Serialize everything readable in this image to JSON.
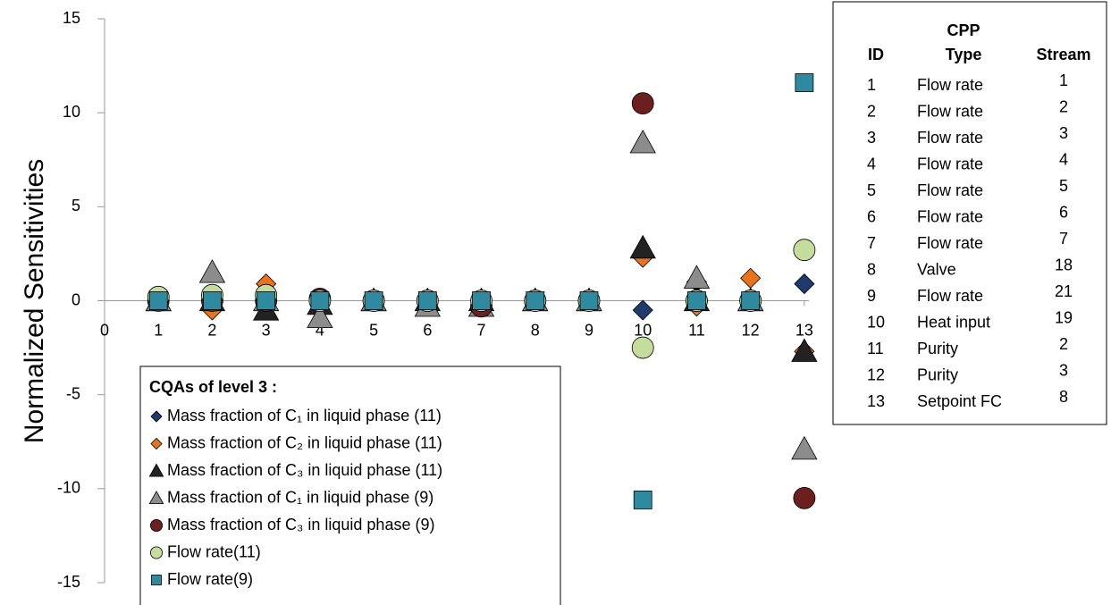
{
  "chart_data": {
    "type": "scatter",
    "ylabel": "Normalized Sensitivities",
    "x": [
      1,
      2,
      3,
      4,
      5,
      6,
      7,
      8,
      9,
      10,
      11,
      12,
      13
    ],
    "xlim": [
      0,
      13.5
    ],
    "xticks": [
      0,
      1,
      2,
      3,
      4,
      5,
      6,
      7,
      8,
      9,
      10,
      11,
      12,
      13
    ],
    "ylim": [
      -15,
      15
    ],
    "yticks": [
      -15,
      -10,
      -5,
      0,
      5,
      10,
      15
    ],
    "legend_title": "CQAs of level 3 :",
    "legend_position": "lower left",
    "series": [
      {
        "name": "Mass fraction of C₁ in liquid phase (11)",
        "color": "#1f3b6b",
        "marker": "diamond",
        "values": [
          0,
          0,
          0,
          0,
          0,
          0,
          0,
          0,
          0,
          -0.5,
          1.0,
          0,
          0.9
        ]
      },
      {
        "name": "Mass fraction of C₂ in liquid phase (11)",
        "color": "#e8731a",
        "marker": "diamond",
        "values": [
          0,
          -0.5,
          0.9,
          0,
          0,
          0,
          0,
          0,
          0,
          2.3,
          -0.3,
          1.2,
          -2.7
        ]
      },
      {
        "name": "Mass fraction of C₃ in liquid phase (11)",
        "color": "#222222",
        "marker": "triangle",
        "values": [
          0,
          0,
          -0.5,
          -0.2,
          0,
          0,
          0,
          0,
          0,
          2.8,
          0,
          0,
          -2.7
        ]
      },
      {
        "name": "Mass fraction of C₁ in liquid phase (9)",
        "color": "#8c8c8c",
        "marker": "triangle",
        "values": [
          0,
          1.5,
          0,
          -0.9,
          0,
          -0.3,
          -0.3,
          0,
          0,
          8.4,
          1.2,
          0,
          -7.9
        ]
      },
      {
        "name": "Mass fraction of C₃ in liquid phase (9)",
        "color": "#6b1f1f",
        "marker": "circle",
        "values": [
          0,
          0,
          0,
          0.1,
          0,
          0,
          -0.3,
          0,
          0,
          10.5,
          0,
          0,
          -10.5
        ]
      },
      {
        "name": "Flow rate(11)",
        "color": "#c5dc9c",
        "marker": "circle",
        "values": [
          0.2,
          0.3,
          0.3,
          0,
          0,
          0,
          0,
          0,
          0,
          -2.5,
          0,
          0,
          2.7
        ]
      },
      {
        "name": "Flow rate(9)",
        "color": "#2f8aa0",
        "marker": "square",
        "values": [
          0,
          0,
          0,
          0,
          0,
          0,
          0,
          0,
          0,
          -10.6,
          0,
          0,
          11.6
        ]
      }
    ]
  },
  "table": {
    "title": "CPP",
    "columns": [
      "ID",
      "Type",
      "Stream"
    ],
    "rows": [
      [
        "1",
        "Flow rate",
        "1"
      ],
      [
        "2",
        "Flow rate",
        "2"
      ],
      [
        "3",
        "Flow rate",
        "3"
      ],
      [
        "4",
        "Flow rate",
        "4"
      ],
      [
        "5",
        "Flow rate",
        "5"
      ],
      [
        "6",
        "Flow rate",
        "6"
      ],
      [
        "7",
        "Flow rate",
        "7"
      ],
      [
        "8",
        "Valve",
        "18"
      ],
      [
        "9",
        "Flow rate",
        "21"
      ],
      [
        "10",
        "Heat input",
        "19"
      ],
      [
        "11",
        "Purity",
        "2"
      ],
      [
        "12",
        "Purity",
        "3"
      ],
      [
        "13",
        "Setpoint FC",
        "8"
      ]
    ]
  }
}
